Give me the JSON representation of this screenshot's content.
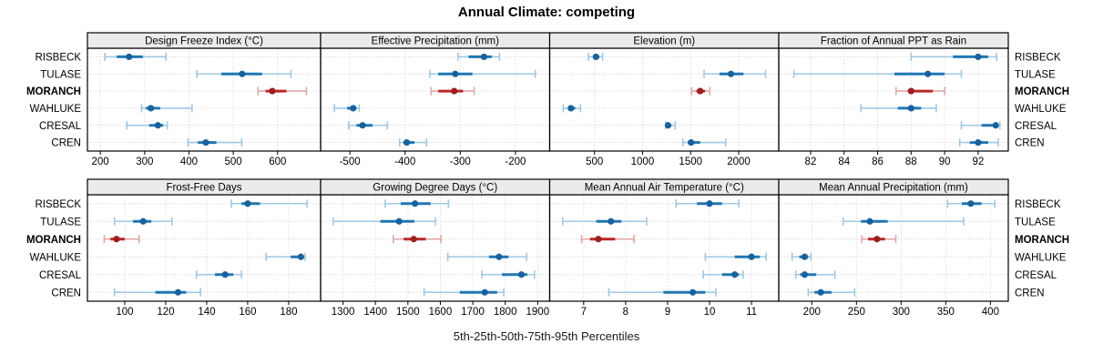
{
  "title": "Annual Climate: competing",
  "footer": "5th-25th-50th-75th-95th Percentiles",
  "sites": [
    "RISBECK",
    "TULASE",
    "MORANCH",
    "WAHLUKE",
    "CRESAL",
    "CREN"
  ],
  "highlight_site": "MORANCH",
  "colors": {
    "normal": "#2077b4",
    "normal_light": "#9ec9e2",
    "normal_dot": "#17629e",
    "highlight": "#bb2727",
    "highlight_light": "#e2a6a6",
    "highlight_dot": "#9e1d1d",
    "strip_bg": "#ebebeb",
    "grid": "#c9c9c9",
    "border": "#000000"
  },
  "chart_data": {
    "type": "trellis-dotplot",
    "rows": 2,
    "cols": 4,
    "percentiles": [
      5,
      25,
      50,
      75,
      95
    ],
    "site_order": [
      "RISBECK",
      "TULASE",
      "MORANCH",
      "WAHLUKE",
      "CRESAL",
      "CREN"
    ],
    "panels": [
      {
        "title": "Design Freeze Index (°C)",
        "domain": [
          171,
          697
        ],
        "ticks": [
          200,
          300,
          400,
          500,
          600
        ],
        "values": [
          [
            210,
            237,
            265,
            296,
            348
          ],
          [
            418,
            473,
            520,
            565,
            630
          ],
          [
            556,
            573,
            588,
            620,
            665
          ],
          [
            293,
            303,
            314,
            335,
            407
          ],
          [
            260,
            310,
            330,
            342,
            351
          ],
          [
            398,
            420,
            438,
            462,
            519
          ]
        ]
      },
      {
        "title": "Effective Precipitation (mm)",
        "domain": [
          -553,
          -138
        ],
        "ticks": [
          -500,
          -400,
          -300,
          -200
        ],
        "values": [
          [
            -304,
            -285,
            -257,
            -243,
            -229
          ],
          [
            -355,
            -340,
            -309,
            -278,
            -164
          ],
          [
            -353,
            -340,
            -311,
            -295,
            -275
          ],
          [
            -528,
            -505,
            -494,
            -488,
            -483
          ],
          [
            -502,
            -488,
            -477,
            -459,
            -432
          ],
          [
            -410,
            -403,
            -397,
            -383,
            -361
          ]
        ]
      },
      {
        "title": "Elevation (m)",
        "domain": [
          34,
          2417
        ],
        "ticks": [
          500,
          1000,
          1500,
          2000
        ],
        "values": [
          [
            437,
            490,
            515,
            550,
            585
          ],
          [
            1640,
            1800,
            1920,
            2050,
            2280
          ],
          [
            1510,
            1560,
            1600,
            1650,
            1700
          ],
          [
            175,
            225,
            255,
            300,
            355
          ],
          [
            1240,
            1252,
            1265,
            1300,
            1340
          ],
          [
            1420,
            1470,
            1505,
            1600,
            1865
          ]
        ]
      },
      {
        "title": "Fraction of Annual PPT as Rain",
        "domain": [
          80.1,
          93.8
        ],
        "ticks": [
          82,
          84,
          86,
          88,
          90,
          92
        ],
        "values": [
          [
            88,
            90.5,
            92,
            92.6,
            93.1
          ],
          [
            81,
            87,
            89,
            90,
            91
          ],
          [
            87.1,
            87.8,
            88,
            89.3,
            90
          ],
          [
            85,
            87.2,
            88,
            88.6,
            89.5
          ],
          [
            91,
            92.2,
            93.05,
            93.2,
            93.3
          ],
          [
            90.9,
            91.5,
            92,
            92.6,
            93.2
          ]
        ]
      },
      {
        "title": "Frost-Free Days",
        "domain": [
          81.8,
          195.6
        ],
        "ticks": [
          100,
          120,
          140,
          160,
          180
        ],
        "values": [
          [
            152,
            157,
            160,
            166,
            189
          ],
          [
            95,
            104,
            109,
            113,
            123
          ],
          [
            90,
            93,
            96,
            100,
            107
          ],
          [
            169,
            181,
            186,
            187,
            188
          ],
          [
            135,
            144,
            149,
            153,
            157
          ],
          [
            95,
            115,
            126,
            130,
            137
          ]
        ]
      },
      {
        "title": "Growing Degree Days (°C)",
        "domain": [
          1231,
          1937
        ],
        "ticks": [
          1300,
          1400,
          1500,
          1600,
          1700,
          1800,
          1900
        ],
        "values": [
          [
            1430,
            1478,
            1522,
            1570,
            1625
          ],
          [
            1270,
            1415,
            1473,
            1520,
            1585
          ],
          [
            1455,
            1487,
            1518,
            1555,
            1602
          ],
          [
            1623,
            1750,
            1781,
            1810,
            1866
          ],
          [
            1728,
            1790,
            1850,
            1868,
            1890
          ],
          [
            1550,
            1660,
            1737,
            1775,
            1795
          ]
        ]
      },
      {
        "title": "Mean Annual Air Temperature (°C)",
        "domain": [
          6.19,
          11.65
        ],
        "ticks": [
          7,
          8,
          9,
          10,
          11
        ],
        "values": [
          [
            9.2,
            9.7,
            10.0,
            10.3,
            10.7
          ],
          [
            6.5,
            7.3,
            7.65,
            7.9,
            8.5
          ],
          [
            6.95,
            7.15,
            7.35,
            7.75,
            8.2
          ],
          [
            9.9,
            10.6,
            11.0,
            11.2,
            11.35
          ],
          [
            9.85,
            10.3,
            10.6,
            10.7,
            10.8
          ],
          [
            7.6,
            8.9,
            9.6,
            9.9,
            10.15
          ]
        ]
      },
      {
        "title": "Mean Annual Precipitation (mm)",
        "domain": [
          163,
          420
        ],
        "ticks": [
          200,
          250,
          300,
          350,
          400
        ],
        "values": [
          [
            352,
            368,
            378,
            390,
            405
          ],
          [
            235,
            255,
            265,
            285,
            370
          ],
          [
            256,
            263,
            273,
            282,
            294
          ],
          [
            178,
            186,
            192,
            196,
            199
          ],
          [
            182,
            187,
            192,
            205,
            226
          ],
          [
            196,
            203,
            210,
            222,
            248
          ]
        ]
      }
    ]
  }
}
